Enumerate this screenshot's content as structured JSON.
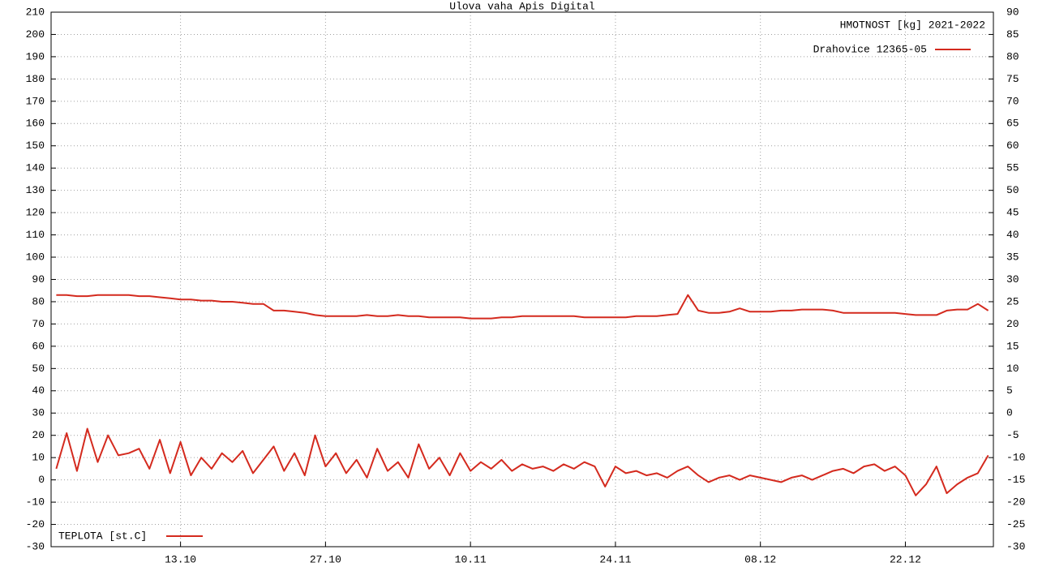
{
  "chart_data": {
    "type": "line",
    "title": "Ulova vaha Apis Digital",
    "y_label": "HMOTNOST [kg] 2021-2022",
    "categories": [
      null,
      null,
      null,
      null,
      null,
      null,
      null,
      null,
      null,
      null,
      null,
      null,
      "13.10",
      null,
      null,
      null,
      null,
      null,
      null,
      null,
      null,
      null,
      null,
      null,
      null,
      null,
      "27.10",
      null,
      null,
      null,
      null,
      null,
      null,
      null,
      null,
      null,
      null,
      null,
      null,
      null,
      "10.11",
      null,
      null,
      null,
      null,
      null,
      null,
      null,
      null,
      null,
      null,
      null,
      null,
      null,
      "24.11",
      null,
      null,
      null,
      null,
      null,
      null,
      null,
      null,
      null,
      null,
      null,
      null,
      null,
      "08.12",
      null,
      null,
      null,
      null,
      null,
      null,
      null,
      null,
      null,
      null,
      null,
      null,
      null,
      "22.12",
      null,
      null,
      null,
      null,
      null,
      null,
      null,
      null
    ],
    "series": [
      {
        "name": "Drahovice 12365-05",
        "color": "#d42a1e",
        "values": [
          83,
          83,
          82.5,
          82.5,
          83,
          83,
          83,
          83,
          82.5,
          82.5,
          82,
          81.5,
          81,
          81,
          80.5,
          80.5,
          80,
          80,
          79.5,
          79,
          79,
          76,
          76,
          75.5,
          75,
          74,
          73.5,
          73.5,
          73.5,
          73.5,
          74,
          73.5,
          73.5,
          74,
          73.5,
          73.5,
          73,
          73,
          73,
          73,
          72.5,
          72.5,
          72.5,
          73,
          73,
          73.5,
          73.5,
          73.5,
          73.5,
          73.5,
          73.5,
          73,
          73,
          73,
          73,
          73,
          73.5,
          73.5,
          73.5,
          74,
          74.5,
          83,
          76,
          75,
          75,
          75.5,
          77,
          75.5,
          75.5,
          75.5,
          76,
          76,
          76.5,
          76.5,
          76.5,
          76,
          75,
          75,
          75,
          75,
          75,
          75,
          74.5,
          74,
          74,
          74,
          76,
          76.5,
          76.5,
          79,
          76
        ]
      },
      {
        "name": "TEPLOTA [st.C]",
        "color": "#d42a1e",
        "values": [
          5,
          21,
          4,
          23,
          8,
          20,
          11,
          12,
          14,
          5,
          18,
          3,
          17,
          2,
          10,
          5,
          12,
          8,
          13,
          3,
          9,
          15,
          4,
          12,
          2,
          20,
          6,
          12,
          3,
          9,
          1,
          14,
          4,
          8,
          1,
          16,
          5,
          10,
          2,
          12,
          4,
          8,
          5,
          9,
          4,
          7,
          5,
          6,
          4,
          7,
          5,
          8,
          6,
          -3,
          6,
          3,
          4,
          2,
          3,
          1,
          4,
          6,
          2,
          -1,
          1,
          2,
          0,
          2,
          1,
          0,
          -1,
          1,
          2,
          0,
          2,
          4,
          5,
          3,
          6,
          7,
          4,
          6,
          2,
          -7,
          -2,
          6,
          -6,
          -2,
          1,
          3,
          11
        ]
      }
    ],
    "ylim": [
      -30,
      210
    ],
    "yticks": [
      -30,
      -20,
      -10,
      0,
      10,
      20,
      30,
      40,
      50,
      60,
      70,
      80,
      90,
      100,
      110,
      120,
      130,
      140,
      150,
      160,
      170,
      180,
      190,
      200,
      210
    ],
    "y2lim": [
      -30,
      90
    ],
    "y2ticks": [
      -30,
      -25,
      -20,
      -15,
      -10,
      -5,
      0,
      5,
      10,
      15,
      20,
      25,
      30,
      35,
      40,
      45,
      50,
      55,
      60,
      65,
      70,
      75,
      80,
      85,
      90
    ],
    "grid": true
  }
}
